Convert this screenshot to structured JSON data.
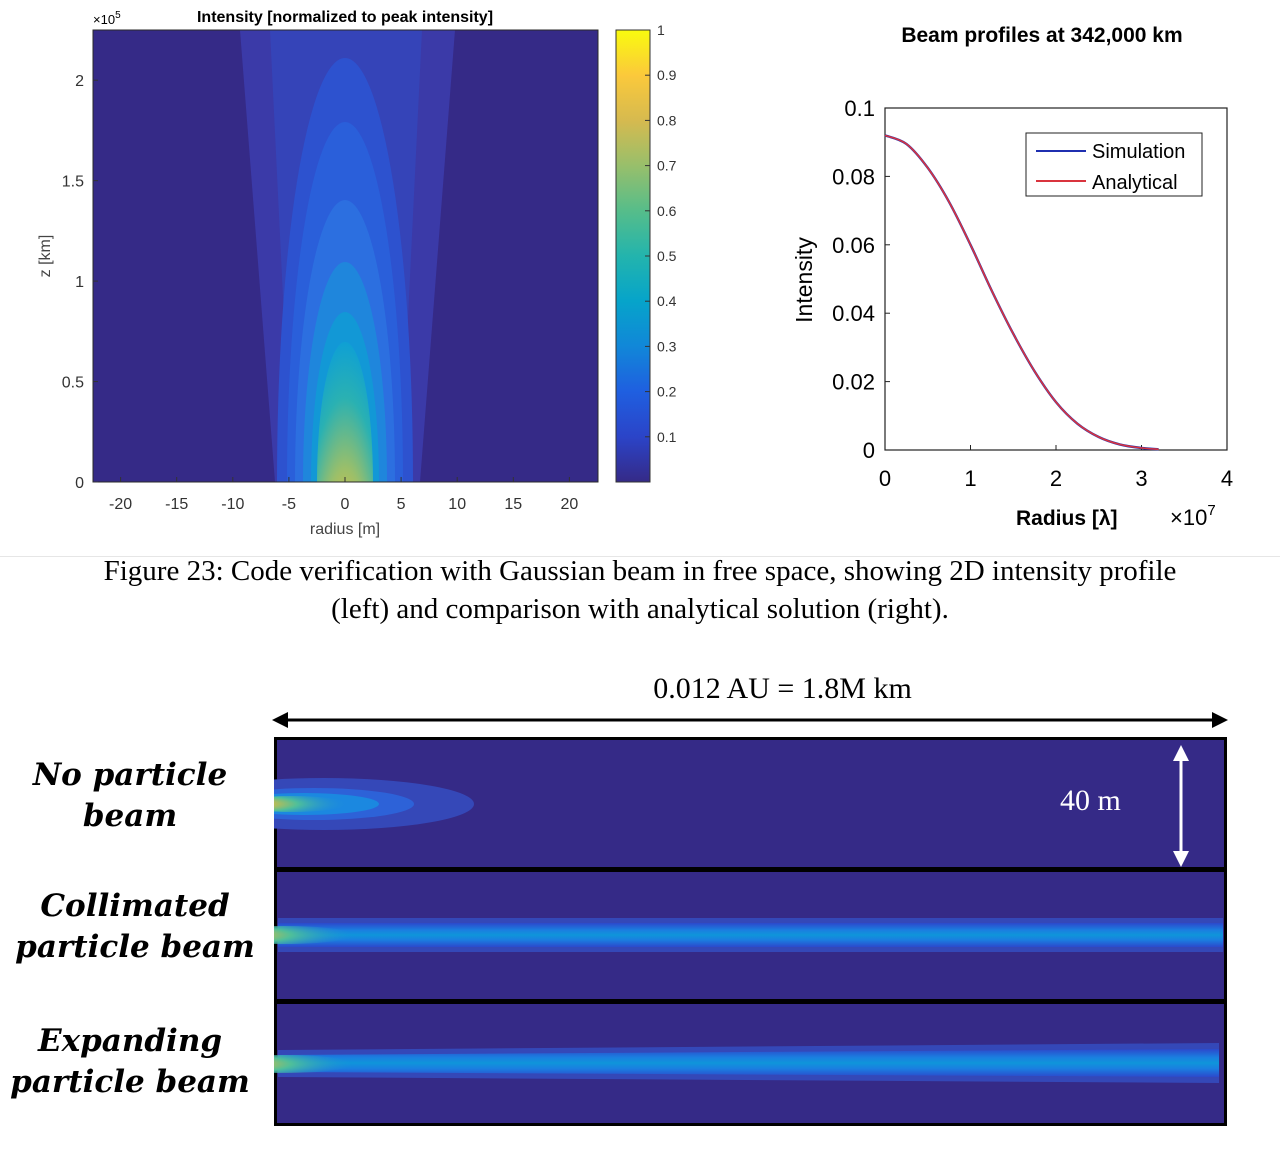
{
  "heatmap": {
    "title": "Intensity [normalized to peak intensity]",
    "xlabel": "radius [m]",
    "ylabel": "z [km]",
    "y_multiplier": "×10",
    "y_multiplier_exp": "5",
    "xticks": [
      "-20",
      "-15",
      "-10",
      "-5",
      "0",
      "5",
      "10",
      "15",
      "20"
    ],
    "yticks": [
      "0",
      "0.5",
      "1",
      "1.5",
      "2"
    ],
    "colorbar_ticks": [
      "0.1",
      "0.2",
      "0.3",
      "0.4",
      "0.5",
      "0.6",
      "0.7",
      "0.8",
      "0.9",
      "1"
    ],
    "colors": {
      "low": "#352a87",
      "mid": "#0f9fd6",
      "high": "#f9fb0e"
    }
  },
  "chart_data": {
    "type": "line",
    "title": "Beam profiles at 342,000 km",
    "xlabel": "Radius [λ]",
    "x_multiplier": "×10",
    "x_multiplier_exp": "7",
    "ylabel": "Intensity",
    "xlim": [
      0,
      4
    ],
    "ylim": [
      0,
      0.1
    ],
    "xticks": [
      "0",
      "1",
      "2",
      "3",
      "4"
    ],
    "yticks": [
      "0",
      "0.02",
      "0.04",
      "0.06",
      "0.08",
      "0.1"
    ],
    "legend_position": "top-right",
    "x": [
      0,
      0.25,
      0.5,
      0.75,
      1.0,
      1.25,
      1.5,
      1.75,
      2.0,
      2.25,
      2.5,
      2.75,
      3.0,
      3.2
    ],
    "series": [
      {
        "name": "Simulation",
        "color": "#1f2fb0",
        "values": [
          0.092,
          0.0895,
          0.0825,
          0.0725,
          0.06,
          0.0465,
          0.034,
          0.023,
          0.014,
          0.0077,
          0.0038,
          0.0016,
          0.0006,
          0.0002
        ]
      },
      {
        "name": "Analytical",
        "color": "#d9343e",
        "values": [
          0.092,
          0.0895,
          0.0825,
          0.0725,
          0.06,
          0.0465,
          0.034,
          0.023,
          0.014,
          0.0077,
          0.0038,
          0.0016,
          0.0006,
          0.0002
        ]
      }
    ]
  },
  "caption": {
    "line1": "Figure 23: Code verification with Gaussian beam in free space, showing 2D intensity profile",
    "line2": "(left) and comparison with analytical solution (right)."
  },
  "panels": {
    "length_label": "0.012 AU = 1.8M km",
    "height_label": "40 m",
    "rows": [
      {
        "line1": "No particle",
        "line2": "beam"
      },
      {
        "line1": "Collimated",
        "line2": "particle beam"
      },
      {
        "line1": "Expanding",
        "line2": "particle beam"
      }
    ]
  }
}
